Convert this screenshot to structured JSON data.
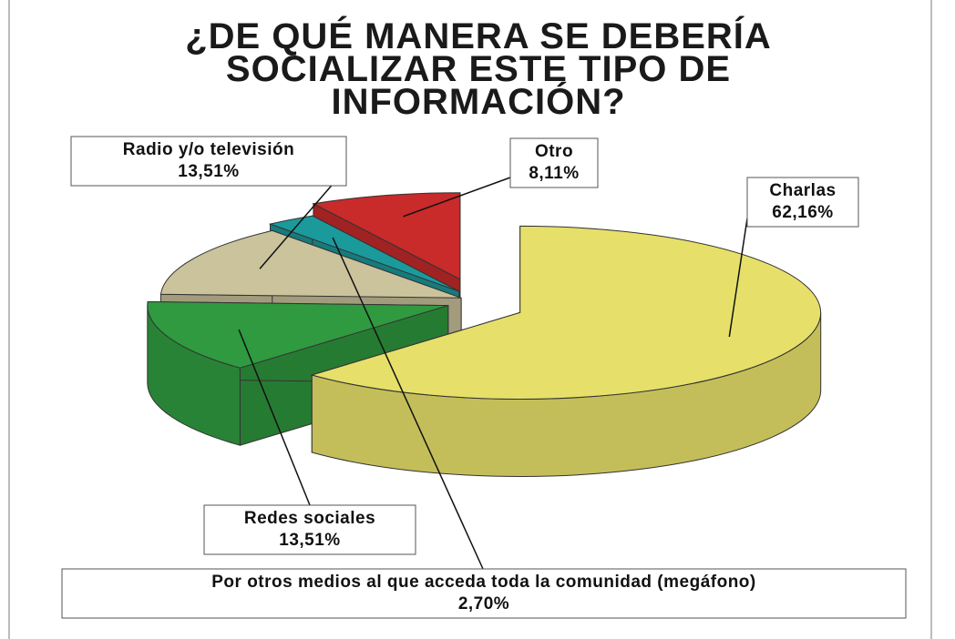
{
  "chart_data": {
    "type": "pie",
    "title": "¿DE QUÉ MANERA SE DEBERÍA SOCIALIZAR ESTE TIPO DE INFORMACIÓN?",
    "categories": [
      "Charlas",
      "Redes sociales",
      "Radio y/o televisión",
      "Por otros medios al que acceda toda la comunidad (megáfono)",
      "Otro"
    ],
    "values": [
      62.16,
      13.51,
      13.51,
      2.7,
      8.11
    ],
    "value_labels": [
      "62,16%",
      "13,51%",
      "13,51%",
      "2,70%",
      "8,11%"
    ],
    "colors": [
      "#e6e06a",
      "#2f9a3f",
      "#cbc39c",
      "#1b9a9c",
      "#c92a2a"
    ]
  }
}
